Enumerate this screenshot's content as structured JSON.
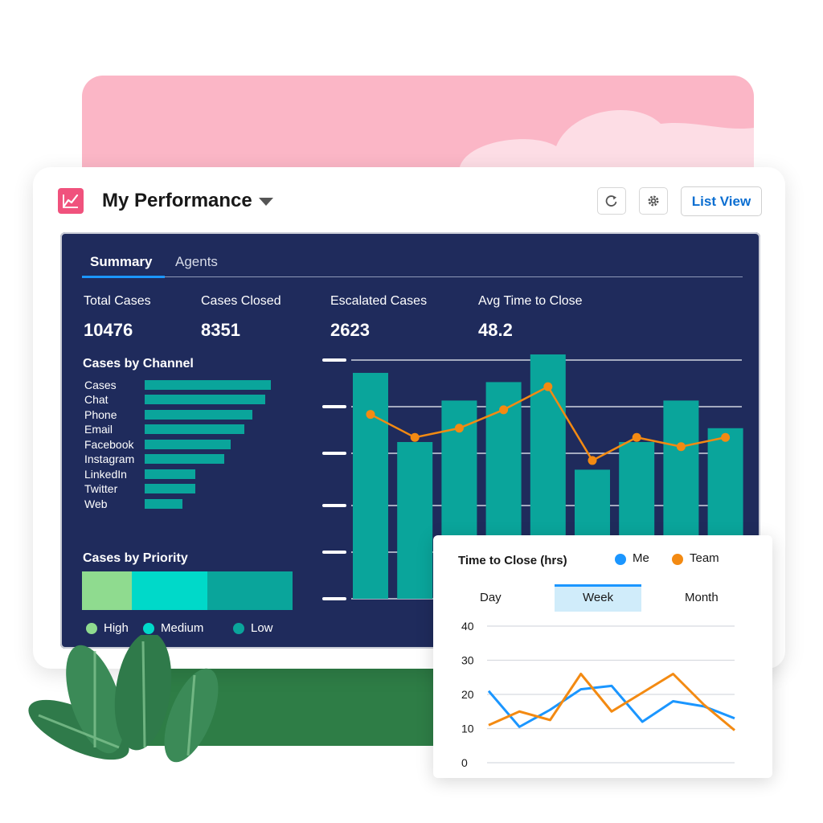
{
  "header": {
    "title": "My Performance",
    "list_view_label": "List View"
  },
  "tabs": [
    {
      "label": "Summary",
      "active": true
    },
    {
      "label": "Agents",
      "active": false
    }
  ],
  "kpis": [
    {
      "label": "Total Cases",
      "value": "10476"
    },
    {
      "label": "Cases Closed",
      "value": "8351"
    },
    {
      "label": "Escalated Cases",
      "value": "2623"
    },
    {
      "label": "Avg Time to Close",
      "value": "48.2"
    }
  ],
  "channels": {
    "title": "Cases by Channel",
    "items": [
      {
        "label": "Cases",
        "value": 157
      },
      {
        "label": "Chat",
        "value": 150
      },
      {
        "label": "Phone",
        "value": 134
      },
      {
        "label": "Email",
        "value": 124
      },
      {
        "label": "Facebook",
        "value": 107
      },
      {
        "label": "Instagram",
        "value": 99
      },
      {
        "label": "LinkedIn",
        "value": 63
      },
      {
        "label": "Twitter",
        "value": 63
      },
      {
        "label": "Web",
        "value": 47
      }
    ]
  },
  "priority": {
    "title": "Cases by Priority",
    "segments": [
      {
        "label": "High",
        "share": 0.236,
        "color": "#8fdb8f"
      },
      {
        "label": "Medium",
        "share": 0.36,
        "color": "#00d9c9"
      },
      {
        "label": "Low",
        "share": 0.404,
        "color": "#0aa59b"
      }
    ]
  },
  "colors": {
    "panel": "#1f2b5c",
    "teal": "#0aa59b",
    "orange": "#f38a12",
    "blue": "#1b96ff",
    "brand_pink": "#f0527d",
    "link_blue": "#0a6ed1"
  },
  "icons": {
    "app": "chart-line-icon",
    "refresh": "refresh-icon",
    "settings": "gear-icon",
    "dropdown": "caret-down-icon"
  },
  "chart_data": [
    {
      "type": "bar",
      "title": "",
      "ylim": [
        0,
        5.3
      ],
      "grid": true,
      "bars": [
        4.9,
        3.4,
        4.3,
        4.7,
        5.3,
        2.8,
        3.4,
        4.3,
        3.7
      ],
      "line": [
        4.0,
        3.5,
        3.7,
        4.1,
        4.6,
        3.0,
        3.5,
        3.3,
        3.5
      ]
    },
    {
      "type": "line",
      "title": "Time to Close (hrs)",
      "ylim": [
        0,
        40
      ],
      "yticks": [
        40,
        30,
        20,
        10,
        0
      ],
      "grid": true,
      "periods": [
        "Day",
        "Week",
        "Month"
      ],
      "active_period": "Week",
      "series": [
        {
          "name": "Me",
          "color": "#1b96ff",
          "values": [
            21,
            10.5,
            15.5,
            21.5,
            22.5,
            12,
            18,
            16.5,
            13
          ]
        },
        {
          "name": "Team",
          "color": "#f38a12",
          "values": [
            11,
            15,
            12.5,
            26,
            15,
            20.5,
            26,
            17,
            9.5
          ]
        }
      ]
    }
  ]
}
